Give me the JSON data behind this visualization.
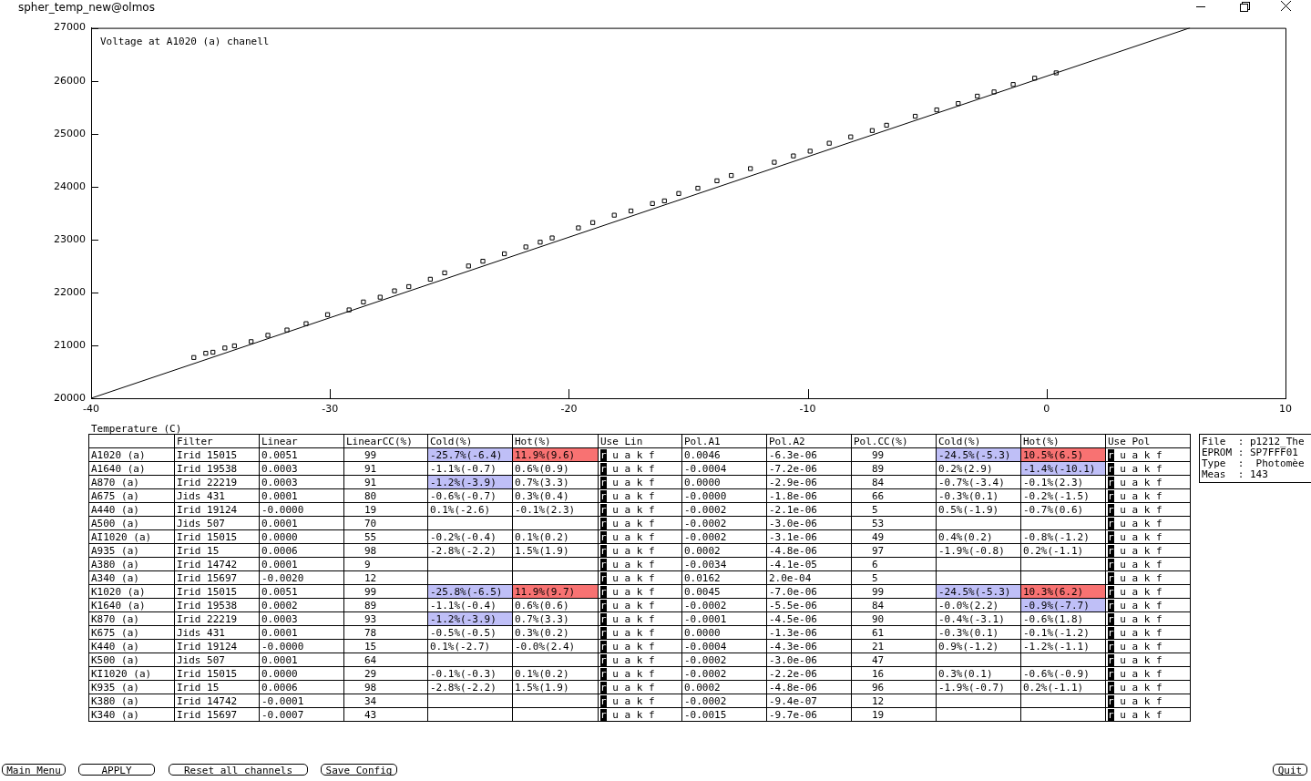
{
  "chart_data": [
    {
      "type": "scatter",
      "title": "Voltage at A1020 (a) chanell",
      "xlabel": "Temperature (C)",
      "annotations": [
        "spher_temp_new@olmos"
      ],
      "xlim": [
        -40,
        10
      ],
      "xticks": [
        -40,
        -30,
        -20,
        -10,
        0,
        10
      ],
      "ylim": [
        20000,
        27000
      ],
      "yticks": [
        20000,
        21000,
        22000,
        23000,
        24000,
        25000,
        26000,
        27000
      ],
      "marker": "square",
      "series": [
        {
          "type": "scatter",
          "color": "#000000",
          "x": [
            -35.7,
            -35.2,
            -34.9,
            -34.4,
            -34.0,
            -33.3,
            -32.6,
            -31.8,
            -31.0,
            -30.1,
            -29.2,
            -28.6,
            -27.9,
            -27.3,
            -26.7,
            -25.8,
            -25.2,
            -24.2,
            -23.6,
            -22.7,
            -21.8,
            -21.2,
            -20.7,
            -19.6,
            -19.0,
            -18.1,
            -17.4,
            -16.5,
            -16.0,
            -15.4,
            -14.6,
            -13.8,
            -13.2,
            -12.4,
            -11.4,
            -10.6,
            -9.9,
            -9.1,
            -8.2,
            -7.3,
            -6.7,
            -5.5,
            -4.6,
            -3.7,
            -2.9,
            -2.2,
            -1.4,
            -0.5,
            0.4
          ],
          "values": [
            20770,
            20850,
            20870,
            20950,
            20990,
            21070,
            21190,
            21290,
            21410,
            21580,
            21670,
            21820,
            21910,
            22030,
            22110,
            22250,
            22370,
            22500,
            22590,
            22730,
            22860,
            22950,
            23030,
            23220,
            23320,
            23460,
            23540,
            23680,
            23730,
            23870,
            23970,
            24110,
            24210,
            24340,
            24460,
            24580,
            24670,
            24820,
            24940,
            25060,
            25160,
            25330,
            25450,
            25570,
            25710,
            25790,
            25930,
            26050,
            26150
          ]
        },
        {
          "type": "line",
          "color": "#000000",
          "marker": "none",
          "x": [
            -40,
            6.0
          ],
          "values": [
            20000,
            27000
          ]
        }
      ]
    },
    {
      "type": "other",
      "categories": [
        null,
        "Filter",
        "Linear",
        "LinearCC(%)",
        "Cold(%)",
        "Hot(%)",
        "Use Lin",
        "Pol.A1",
        "Pol.A2",
        "Pol.CC(%)",
        "Cold(%)",
        "Hot(%)",
        "Use Pol"
      ],
      "cell_labels": [
        [
          "A1020 (a)",
          "Irid 15015",
          "0.0051",
          "99",
          "-25.7%(-6.4)",
          "11.9%(9.6)",
          "r u a k f",
          "0.0046",
          "-6.3e-06",
          "99",
          "-24.5%(-5.3)",
          "10.5%(6.5)",
          "r u a k f"
        ],
        [
          "A1640 (a)",
          "Irid 19538",
          "0.0003",
          "91",
          "-1.1%(-0.7)",
          "0.6%(0.9)",
          "r u a k f",
          "-0.0004",
          "-7.2e-06",
          "89",
          "0.2%(2.9)",
          "-1.4%(-10.1)",
          "r u a k f"
        ],
        [
          "A870 (a)",
          "Irid 22219",
          "0.0003",
          "91",
          "-1.2%(-3.9)",
          "0.7%(3.3)",
          "r u a k f",
          "0.0000",
          "-2.9e-06",
          "84",
          "-0.7%(-3.4)",
          "-0.1%(2.3)",
          "r u a k f"
        ],
        [
          "A675 (a)",
          "Jids 431",
          "0.0001",
          "80",
          "-0.6%(-0.7)",
          "0.3%(0.4)",
          "r u a k f",
          "-0.0000",
          "-1.8e-06",
          "66",
          "-0.3%(0.1)",
          "-0.2%(-1.5)",
          "r u a k f"
        ],
        [
          "A440 (a)",
          "Irid 19124",
          "-0.0000",
          "19",
          "0.1%(-2.6)",
          "-0.1%(2.3)",
          "r u a k f",
          "-0.0002",
          "-2.1e-06",
          "5",
          "0.5%(-1.9)",
          "-0.7%(0.6)",
          "r u a k f"
        ],
        [
          "A500 (a)",
          "Jids 507",
          "0.0001",
          "70",
          null,
          null,
          "r u a k f",
          "-0.0002",
          "-3.0e-06",
          "53",
          null,
          null,
          "r u a k f"
        ],
        [
          "AI1020 (a)",
          "Irid 15015",
          "0.0000",
          "55",
          "-0.2%(-0.4)",
          "0.1%(0.2)",
          "r u a k f",
          "-0.0002",
          "-3.1e-06",
          "49",
          "0.4%(0.2)",
          "-0.8%(-1.2)",
          "r u a k f"
        ],
        [
          "A935 (a)",
          "Irid 15",
          "0.0006",
          "98",
          "-2.8%(-2.2)",
          "1.5%(1.9)",
          "r u a k f",
          "0.0002",
          "-4.8e-06",
          "97",
          "-1.9%(-0.8)",
          "0.2%(-1.1)",
          "r u a k f"
        ],
        [
          "A380 (a)",
          "Irid 14742",
          "0.0001",
          "9",
          null,
          null,
          "r u a k f",
          "-0.0034",
          "-4.1e-05",
          "6",
          null,
          null,
          "r u a k f"
        ],
        [
          "A340 (a)",
          "Irid 15697",
          "-0.0020",
          "12",
          null,
          null,
          "r u a k f",
          "0.0162",
          "2.0e-04",
          "5",
          null,
          null,
          "r u a k f"
        ],
        [
          "K1020 (a)",
          "Irid 15015",
          "0.0051",
          "99",
          "-25.8%(-6.5)",
          "11.9%(9.7)",
          "r u a k f",
          "0.0045",
          "-7.0e-06",
          "99",
          "-24.5%(-5.3)",
          "10.3%(6.2)",
          "r u a k f"
        ],
        [
          "K1640 (a)",
          "Irid 19538",
          "0.0002",
          "89",
          "-1.1%(-0.4)",
          "0.6%(0.6)",
          "r u a k f",
          "-0.0002",
          "-5.5e-06",
          "84",
          "-0.0%(2.2)",
          "-0.9%(-7.7)",
          "r u a k f"
        ],
        [
          "K870 (a)",
          "Irid 22219",
          "0.0003",
          "93",
          "-1.2%(-3.9)",
          "0.7%(3.3)",
          "r u a k f",
          "-0.0001",
          "-4.5e-06",
          "90",
          "-0.4%(-3.1)",
          "-0.6%(1.8)",
          "r u a k f"
        ],
        [
          "K675 (a)",
          "Jids 431",
          "0.0001",
          "78",
          "-0.5%(-0.5)",
          "0.3%(0.2)",
          "r u a k f",
          "0.0000",
          "-1.3e-06",
          "61",
          "-0.3%(0.1)",
          "-0.1%(-1.2)",
          "r u a k f"
        ],
        [
          "K440 (a)",
          "Irid 19124",
          "-0.0000",
          "15",
          "0.1%(-2.7)",
          "-0.0%(2.4)",
          "r u a k f",
          "-0.0004",
          "-4.3e-06",
          "21",
          "0.9%(-1.2)",
          "-1.2%(-1.1)",
          "r u a k f"
        ],
        [
          "K500 (a)",
          "Jids 507",
          "0.0001",
          "64",
          null,
          null,
          "r u a k f",
          "-0.0002",
          "-3.0e-06",
          "47",
          null,
          null,
          "r u a k f"
        ],
        [
          "KI1020 (a)",
          "Irid 15015",
          "0.0000",
          "29",
          "-0.1%(-0.3)",
          "0.1%(0.2)",
          "r u a k f",
          "-0.0002",
          "-2.2e-06",
          "16",
          "0.3%(0.1)",
          "-0.6%(-0.9)",
          "r u a k f"
        ],
        [
          "K935 (a)",
          "Irid 15",
          "0.0006",
          "98",
          "-2.8%(-2.2)",
          "1.5%(1.9)",
          "r u a k f",
          "0.0002",
          "-4.8e-06",
          "96",
          "-1.9%(-0.7)",
          "0.2%(-1.1)",
          "r u a k f"
        ],
        [
          "K380 (a)",
          "Irid 14742",
          "-0.0001",
          "34",
          null,
          null,
          "r u a k f",
          "-0.0002",
          "-9.4e-07",
          "12",
          null,
          null,
          "r u a k f"
        ],
        [
          "K340 (a)",
          "Irid 15697",
          "-0.0007",
          "43",
          null,
          null,
          "r u a k f",
          "-0.0015",
          "-9.7e-06",
          "19",
          null,
          null,
          "r u a k f"
        ]
      ],
      "colors": [
        [
          null,
          null,
          null,
          null,
          "#bfbff7",
          "#f87272",
          null,
          null,
          null,
          null,
          "#bfbff7",
          "#f87272",
          null
        ],
        [
          null,
          null,
          null,
          null,
          null,
          null,
          null,
          null,
          null,
          null,
          null,
          "#bfbff7",
          null
        ],
        [
          null,
          null,
          null,
          null,
          "#bfbff7",
          null,
          null,
          null,
          null,
          null,
          null,
          null,
          null
        ],
        null,
        null,
        null,
        null,
        null,
        null,
        null,
        [
          null,
          null,
          null,
          null,
          "#bfbff7",
          "#f87272",
          null,
          null,
          null,
          null,
          "#bfbff7",
          "#f87272",
          null
        ],
        [
          null,
          null,
          null,
          null,
          null,
          null,
          null,
          null,
          null,
          null,
          null,
          "#bfbff7",
          null
        ],
        [
          null,
          null,
          null,
          null,
          "#bfbff7",
          null,
          null,
          null,
          null,
          null,
          null,
          null,
          null
        ],
        null,
        null,
        null,
        null,
        null,
        null,
        null
      ]
    },
    {
      "type": "other",
      "annotations": [
        "File  : p1212_The",
        "EPROM : SP7FFF01",
        "Type  :  Photomèe",
        "Meas  : 143"
      ]
    },
    {
      "type": "other",
      "annotations": [
        "Main Menu",
        "APPLY",
        "Reset all channels",
        "Save Config",
        "Quit"
      ]
    }
  ]
}
